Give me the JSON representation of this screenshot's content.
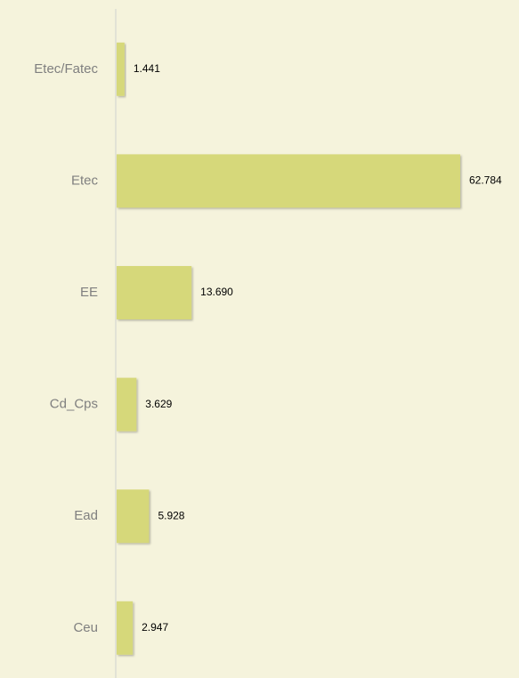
{
  "chart_data": {
    "type": "bar",
    "orientation": "horizontal",
    "categories": [
      "Etec/Fatec",
      "Etec",
      "EE",
      "Cd_Cps",
      "Ead",
      "Ceu"
    ],
    "values": [
      1441,
      62784,
      13690,
      3629,
      5928,
      2947
    ],
    "value_labels": [
      "1.441",
      "62.784",
      "13.690",
      "3.629",
      "5.928",
      "2.947"
    ],
    "color": "#d6d87a"
  }
}
